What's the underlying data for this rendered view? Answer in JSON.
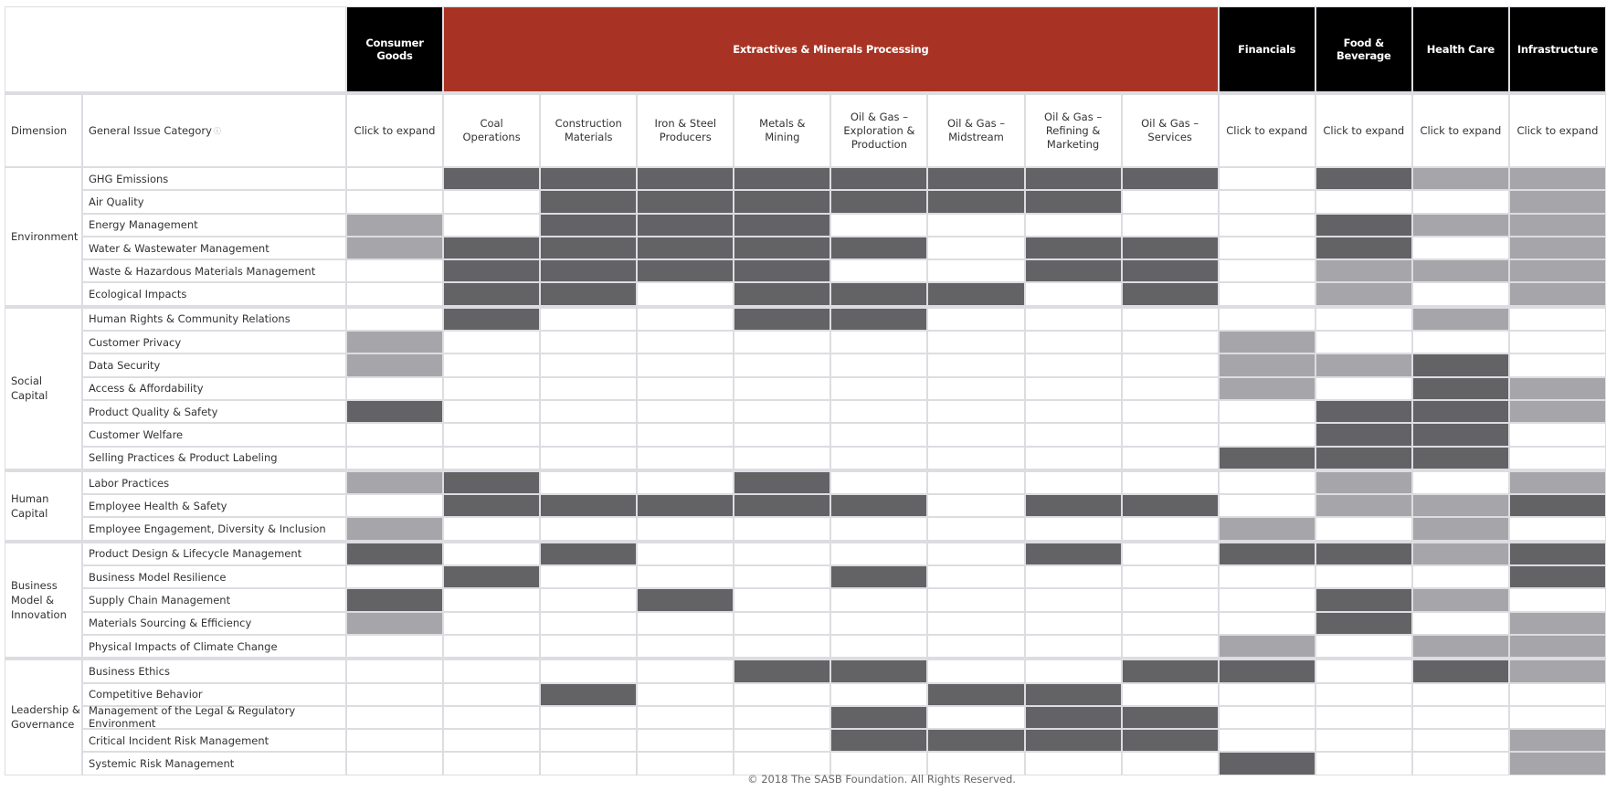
{
  "header": {
    "dimension_label": "Dimension",
    "issue_label": "General Issue Category",
    "issue_info_icon": "info-icon"
  },
  "sectors": [
    {
      "name": "Consumer Goods",
      "color": "#000000",
      "span": 1
    },
    {
      "name": "Extractives & Minerals Processing",
      "color": "#a83324",
      "span": 8
    },
    {
      "name": "Financials",
      "color": "#000000",
      "span": 1
    },
    {
      "name": "Food & Beverage",
      "color": "#000000",
      "span": 1
    },
    {
      "name": "Health Care",
      "color": "#000000",
      "span": 1
    },
    {
      "name": "Infrastructure",
      "color": "#000000",
      "span": 1
    }
  ],
  "columns": [
    "Click to expand",
    "Coal Operations",
    "Construction Materials",
    "Iron & Steel Producers",
    "Metals & Mining",
    "Oil & Gas – Exploration & Production",
    "Oil & Gas – Midstream",
    "Oil & Gas – Refining & Marketing",
    "Oil & Gas – Services",
    "Click to expand",
    "Click to expand",
    "Click to expand",
    "Click to expand"
  ],
  "legend_colors": {
    "0": "#ffffff",
    "1": "#a6a5aa",
    "2": "#636366"
  },
  "dimensions": [
    {
      "name": "Environment",
      "issues": [
        {
          "name": "GHG Emissions",
          "values": [
            0,
            2,
            2,
            2,
            2,
            2,
            2,
            2,
            2,
            0,
            2,
            1,
            1
          ]
        },
        {
          "name": "Air Quality",
          "values": [
            0,
            0,
            2,
            2,
            2,
            2,
            2,
            2,
            0,
            0,
            0,
            0,
            1
          ]
        },
        {
          "name": "Energy Management",
          "values": [
            1,
            0,
            2,
            2,
            2,
            0,
            0,
            0,
            0,
            0,
            2,
            1,
            1
          ]
        },
        {
          "name": "Water & Wastewater Management",
          "values": [
            1,
            2,
            2,
            2,
            2,
            2,
            0,
            2,
            2,
            0,
            2,
            0,
            1
          ]
        },
        {
          "name": "Waste & Hazardous Materials Management",
          "values": [
            0,
            2,
            2,
            2,
            2,
            0,
            0,
            2,
            2,
            0,
            1,
            1,
            1
          ]
        },
        {
          "name": "Ecological Impacts",
          "values": [
            0,
            2,
            2,
            0,
            2,
            2,
            2,
            0,
            2,
            0,
            1,
            0,
            1
          ]
        }
      ]
    },
    {
      "name": "Social Capital",
      "issues": [
        {
          "name": "Human Rights & Community Relations",
          "values": [
            0,
            2,
            0,
            0,
            2,
            2,
            0,
            0,
            0,
            0,
            0,
            1,
            0
          ]
        },
        {
          "name": "Customer Privacy",
          "values": [
            1,
            0,
            0,
            0,
            0,
            0,
            0,
            0,
            0,
            1,
            0,
            0,
            0
          ]
        },
        {
          "name": "Data Security",
          "values": [
            1,
            0,
            0,
            0,
            0,
            0,
            0,
            0,
            0,
            1,
            1,
            2,
            0
          ]
        },
        {
          "name": "Access & Affordability",
          "values": [
            0,
            0,
            0,
            0,
            0,
            0,
            0,
            0,
            0,
            1,
            0,
            2,
            1
          ]
        },
        {
          "name": "Product Quality & Safety",
          "values": [
            2,
            0,
            0,
            0,
            0,
            0,
            0,
            0,
            0,
            0,
            2,
            2,
            1
          ]
        },
        {
          "name": "Customer Welfare",
          "values": [
            0,
            0,
            0,
            0,
            0,
            0,
            0,
            0,
            0,
            0,
            2,
            2,
            0
          ]
        },
        {
          "name": "Selling Practices & Product Labeling",
          "values": [
            0,
            0,
            0,
            0,
            0,
            0,
            0,
            0,
            0,
            2,
            2,
            2,
            0
          ]
        }
      ]
    },
    {
      "name": "Human Capital",
      "issues": [
        {
          "name": "Labor Practices",
          "values": [
            1,
            2,
            0,
            0,
            2,
            0,
            0,
            0,
            0,
            0,
            1,
            0,
            1
          ]
        },
        {
          "name": "Employee Health & Safety",
          "values": [
            0,
            2,
            2,
            2,
            2,
            2,
            0,
            2,
            2,
            0,
            1,
            1,
            2
          ]
        },
        {
          "name": "Employee Engagement, Diversity & Inclusion",
          "values": [
            1,
            0,
            0,
            0,
            0,
            0,
            0,
            0,
            0,
            1,
            0,
            1,
            0
          ]
        }
      ]
    },
    {
      "name": "Business Model & Innovation",
      "issues": [
        {
          "name": "Product Design & Lifecycle Management",
          "values": [
            2,
            0,
            2,
            0,
            0,
            0,
            0,
            2,
            0,
            2,
            2,
            1,
            2
          ]
        },
        {
          "name": "Business Model Resilience",
          "values": [
            0,
            2,
            0,
            0,
            0,
            2,
            0,
            0,
            0,
            0,
            0,
            0,
            2
          ]
        },
        {
          "name": "Supply Chain Management",
          "values": [
            2,
            0,
            0,
            2,
            0,
            0,
            0,
            0,
            0,
            0,
            2,
            1,
            0
          ]
        },
        {
          "name": "Materials Sourcing & Efficiency",
          "values": [
            1,
            0,
            0,
            0,
            0,
            0,
            0,
            0,
            0,
            0,
            2,
            0,
            1
          ]
        },
        {
          "name": "Physical Impacts of Climate Change",
          "values": [
            0,
            0,
            0,
            0,
            0,
            0,
            0,
            0,
            0,
            1,
            0,
            1,
            1
          ]
        }
      ]
    },
    {
      "name": "Leadership & Governance",
      "issues": [
        {
          "name": "Business Ethics",
          "values": [
            0,
            0,
            0,
            0,
            2,
            2,
            0,
            0,
            2,
            2,
            0,
            2,
            1
          ]
        },
        {
          "name": "Competitive Behavior",
          "values": [
            0,
            0,
            2,
            0,
            0,
            0,
            2,
            2,
            0,
            0,
            0,
            0,
            0
          ]
        },
        {
          "name": "Management of the Legal & Regulatory Environment",
          "values": [
            0,
            0,
            0,
            0,
            0,
            2,
            0,
            2,
            2,
            0,
            0,
            0,
            0
          ]
        },
        {
          "name": "Critical Incident Risk Management",
          "values": [
            0,
            0,
            0,
            0,
            0,
            2,
            2,
            2,
            2,
            0,
            0,
            0,
            1
          ]
        },
        {
          "name": "Systemic Risk Management",
          "values": [
            0,
            0,
            0,
            0,
            0,
            0,
            0,
            0,
            0,
            2,
            0,
            0,
            1
          ]
        }
      ]
    }
  ],
  "footer": "© 2018 The SASB Foundation. All Rights Reserved."
}
